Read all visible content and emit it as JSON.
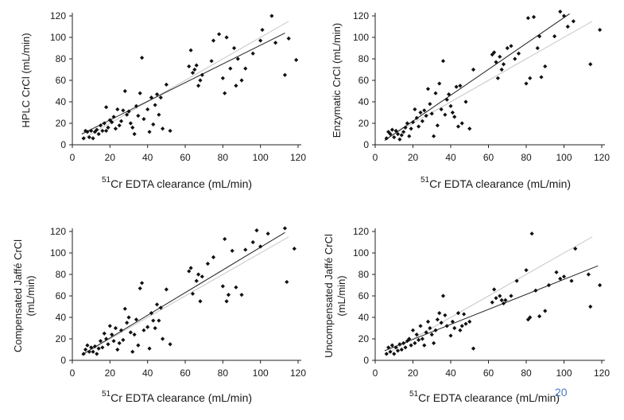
{
  "figure": {
    "page_number": "20",
    "colors": {
      "points": "#111111",
      "axis": "#222222",
      "regression": "#222222",
      "identity": "#c4c4c4",
      "page_number": "#4a78c2"
    }
  },
  "chart_data": [
    {
      "type": "scatter",
      "title": "",
      "ylabel": "HPLC CrCl (mL/min)",
      "xlabel_superscript": "51",
      "xlabel": "Cr EDTA clearance (mL/min)",
      "xlim": [
        0,
        120
      ],
      "ylim": [
        0,
        120
      ],
      "xticks": [
        0,
        20,
        40,
        60,
        80,
        100,
        120
      ],
      "yticks": [
        0,
        20,
        40,
        60,
        80,
        100,
        120
      ],
      "regression_line": {
        "x": [
          5,
          113
        ],
        "y": [
          10,
          104
        ]
      },
      "identity_line": {
        "x": [
          5,
          115
        ],
        "y": [
          5,
          115
        ]
      },
      "points": [
        [
          6,
          6
        ],
        [
          7,
          13
        ],
        [
          8,
          12
        ],
        [
          9,
          7
        ],
        [
          10,
          13
        ],
        [
          11,
          6
        ],
        [
          12,
          12
        ],
        [
          13,
          14
        ],
        [
          14,
          10
        ],
        [
          15,
          18
        ],
        [
          16,
          13
        ],
        [
          17,
          20
        ],
        [
          18,
          13
        ],
        [
          18,
          35
        ],
        [
          19,
          16
        ],
        [
          20,
          23
        ],
        [
          21,
          21
        ],
        [
          22,
          26
        ],
        [
          23,
          15
        ],
        [
          24,
          33
        ],
        [
          25,
          18
        ],
        [
          26,
          22
        ],
        [
          27,
          32
        ],
        [
          28,
          50
        ],
        [
          29,
          28
        ],
        [
          30,
          31
        ],
        [
          31,
          20
        ],
        [
          32,
          16
        ],
        [
          33,
          10
        ],
        [
          34,
          36
        ],
        [
          35,
          27
        ],
        [
          36,
          48
        ],
        [
          37,
          81
        ],
        [
          38,
          24
        ],
        [
          40,
          33
        ],
        [
          41,
          12
        ],
        [
          42,
          44
        ],
        [
          43,
          19
        ],
        [
          44,
          37
        ],
        [
          45,
          47
        ],
        [
          46,
          28
        ],
        [
          47,
          44
        ],
        [
          48,
          15
        ],
        [
          50,
          56
        ],
        [
          52,
          13
        ],
        [
          62,
          73
        ],
        [
          63,
          88
        ],
        [
          64,
          67
        ],
        [
          65,
          70
        ],
        [
          66,
          74
        ],
        [
          67,
          55
        ],
        [
          68,
          60
        ],
        [
          69,
          65
        ],
        [
          74,
          78
        ],
        [
          75,
          97
        ],
        [
          78,
          103
        ],
        [
          80,
          62
        ],
        [
          81,
          48
        ],
        [
          82,
          100
        ],
        [
          84,
          71
        ],
        [
          86,
          90
        ],
        [
          87,
          55
        ],
        [
          88,
          80
        ],
        [
          90,
          60
        ],
        [
          92,
          71
        ],
        [
          96,
          85
        ],
        [
          100,
          97
        ],
        [
          101,
          107
        ],
        [
          106,
          120
        ],
        [
          108,
          95
        ],
        [
          113,
          65
        ],
        [
          115,
          99
        ],
        [
          119,
          79
        ]
      ]
    },
    {
      "type": "scatter",
      "title": "",
      "ylabel": "Enzymatic CrCl (mL/min)",
      "xlabel_superscript": "51",
      "xlabel": "Cr EDTA clearance (mL/min)",
      "xlim": [
        0,
        120
      ],
      "ylim": [
        0,
        120
      ],
      "xticks": [
        0,
        20,
        40,
        60,
        80,
        100,
        120
      ],
      "yticks": [
        0,
        20,
        40,
        60,
        80,
        100,
        120
      ],
      "regression_line": {
        "x": [
          5,
          103
        ],
        "y": [
          4,
          122
        ]
      },
      "identity_line": {
        "x": [
          5,
          115
        ],
        "y": [
          5,
          115
        ]
      },
      "points": [
        [
          6,
          6
        ],
        [
          7,
          12
        ],
        [
          8,
          10
        ],
        [
          9,
          14
        ],
        [
          10,
          7
        ],
        [
          11,
          13
        ],
        [
          12,
          10
        ],
        [
          13,
          5
        ],
        [
          14,
          9
        ],
        [
          15,
          12
        ],
        [
          16,
          16
        ],
        [
          17,
          20
        ],
        [
          18,
          8
        ],
        [
          19,
          15
        ],
        [
          20,
          21
        ],
        [
          21,
          33
        ],
        [
          22,
          25
        ],
        [
          23,
          17
        ],
        [
          24,
          30
        ],
        [
          25,
          22
        ],
        [
          26,
          32
        ],
        [
          27,
          27
        ],
        [
          28,
          52
        ],
        [
          29,
          38
        ],
        [
          30,
          29
        ],
        [
          31,
          8
        ],
        [
          32,
          48
        ],
        [
          33,
          18
        ],
        [
          34,
          57
        ],
        [
          35,
          33
        ],
        [
          36,
          78
        ],
        [
          37,
          28
        ],
        [
          38,
          42
        ],
        [
          39,
          47
        ],
        [
          40,
          36
        ],
        [
          41,
          30
        ],
        [
          42,
          26
        ],
        [
          43,
          54
        ],
        [
          44,
          17
        ],
        [
          45,
          55
        ],
        [
          46,
          20
        ],
        [
          48,
          40
        ],
        [
          50,
          15
        ],
        [
          52,
          70
        ],
        [
          62,
          84
        ],
        [
          63,
          86
        ],
        [
          64,
          77
        ],
        [
          65,
          62
        ],
        [
          66,
          82
        ],
        [
          67,
          70
        ],
        [
          68,
          75
        ],
        [
          70,
          90
        ],
        [
          72,
          92
        ],
        [
          74,
          80
        ],
        [
          76,
          85
        ],
        [
          80,
          57
        ],
        [
          81,
          118
        ],
        [
          82,
          62
        ],
        [
          84,
          119
        ],
        [
          86,
          90
        ],
        [
          87,
          101
        ],
        [
          88,
          63
        ],
        [
          90,
          73
        ],
        [
          95,
          101
        ],
        [
          98,
          124
        ],
        [
          100,
          120
        ],
        [
          102,
          110
        ],
        [
          105,
          115
        ],
        [
          114,
          75
        ],
        [
          119,
          107
        ]
      ]
    },
    {
      "type": "scatter",
      "title": "",
      "ylabel": "Compensated Jaffé CrCl (mL/min)",
      "xlabel_superscript": "51",
      "xlabel": "Cr EDTA clearance (mL/min)",
      "xlim": [
        0,
        120
      ],
      "ylim": [
        0,
        120
      ],
      "xticks": [
        0,
        20,
        40,
        60,
        80,
        100,
        120
      ],
      "yticks": [
        0,
        20,
        40,
        60,
        80,
        100,
        120
      ],
      "regression_line": {
        "x": [
          5,
          113
        ],
        "y": [
          5,
          119
        ]
      },
      "identity_line": {
        "x": [
          5,
          115
        ],
        "y": [
          5,
          115
        ]
      },
      "points": [
        [
          6,
          6
        ],
        [
          7,
          10
        ],
        [
          8,
          14
        ],
        [
          9,
          8
        ],
        [
          10,
          12
        ],
        [
          11,
          8
        ],
        [
          12,
          13
        ],
        [
          13,
          6
        ],
        [
          14,
          11
        ],
        [
          15,
          18
        ],
        [
          16,
          12
        ],
        [
          17,
          25
        ],
        [
          18,
          20
        ],
        [
          19,
          15
        ],
        [
          20,
          32
        ],
        [
          21,
          24
        ],
        [
          22,
          18
        ],
        [
          23,
          30
        ],
        [
          24,
          10
        ],
        [
          25,
          16
        ],
        [
          26,
          28
        ],
        [
          27,
          19
        ],
        [
          28,
          48
        ],
        [
          29,
          35
        ],
        [
          30,
          40
        ],
        [
          31,
          26
        ],
        [
          32,
          8
        ],
        [
          33,
          24
        ],
        [
          34,
          38
        ],
        [
          35,
          14
        ],
        [
          36,
          67
        ],
        [
          37,
          72
        ],
        [
          38,
          28
        ],
        [
          40,
          31
        ],
        [
          41,
          11
        ],
        [
          42,
          44
        ],
        [
          43,
          37
        ],
        [
          44,
          30
        ],
        [
          45,
          52
        ],
        [
          46,
          37
        ],
        [
          47,
          49
        ],
        [
          48,
          20
        ],
        [
          50,
          66
        ],
        [
          52,
          15
        ],
        [
          62,
          83
        ],
        [
          63,
          86
        ],
        [
          64,
          62
        ],
        [
          66,
          74
        ],
        [
          67,
          80
        ],
        [
          68,
          55
        ],
        [
          69,
          78
        ],
        [
          72,
          90
        ],
        [
          75,
          96
        ],
        [
          80,
          69
        ],
        [
          81,
          113
        ],
        [
          82,
          55
        ],
        [
          83,
          61
        ],
        [
          85,
          102
        ],
        [
          87,
          68
        ],
        [
          90,
          61
        ],
        [
          92,
          103
        ],
        [
          96,
          110
        ],
        [
          98,
          121
        ],
        [
          100,
          106
        ],
        [
          104,
          118
        ],
        [
          113,
          123
        ],
        [
          114,
          73
        ],
        [
          118,
          104
        ]
      ]
    },
    {
      "type": "scatter",
      "title": "",
      "ylabel": "Uncompensated Jaffé CrCl (mL/min)",
      "xlabel_superscript": "51",
      "xlabel": "Cr EDTA clearance (mL/min)",
      "xlim": [
        0,
        120
      ],
      "ylim": [
        0,
        120
      ],
      "xticks": [
        0,
        20,
        40,
        60,
        80,
        100,
        120
      ],
      "yticks": [
        0,
        20,
        40,
        60,
        80,
        100,
        120
      ],
      "regression_line": {
        "x": [
          5,
          118
        ],
        "y": [
          9,
          88
        ]
      },
      "identity_line": {
        "x": [
          5,
          115
        ],
        "y": [
          5,
          115
        ]
      },
      "points": [
        [
          6,
          6
        ],
        [
          7,
          12
        ],
        [
          8,
          8
        ],
        [
          9,
          14
        ],
        [
          10,
          6
        ],
        [
          11,
          12
        ],
        [
          12,
          9
        ],
        [
          13,
          15
        ],
        [
          14,
          10
        ],
        [
          15,
          16
        ],
        [
          16,
          12
        ],
        [
          17,
          18
        ],
        [
          18,
          20
        ],
        [
          19,
          14
        ],
        [
          20,
          28
        ],
        [
          21,
          16
        ],
        [
          22,
          24
        ],
        [
          23,
          19
        ],
        [
          24,
          32
        ],
        [
          25,
          20
        ],
        [
          26,
          14
        ],
        [
          27,
          26
        ],
        [
          28,
          36
        ],
        [
          29,
          30
        ],
        [
          30,
          24
        ],
        [
          31,
          16
        ],
        [
          32,
          28
        ],
        [
          33,
          38
        ],
        [
          34,
          44
        ],
        [
          35,
          35
        ],
        [
          36,
          60
        ],
        [
          37,
          42
        ],
        [
          38,
          32
        ],
        [
          40,
          23
        ],
        [
          41,
          36
        ],
        [
          42,
          30
        ],
        [
          44,
          44
        ],
        [
          45,
          28
        ],
        [
          46,
          32
        ],
        [
          47,
          43
        ],
        [
          48,
          34
        ],
        [
          50,
          36
        ],
        [
          52,
          11
        ],
        [
          62,
          54
        ],
        [
          63,
          66
        ],
        [
          64,
          58
        ],
        [
          66,
          60
        ],
        [
          67,
          56
        ],
        [
          68,
          53
        ],
        [
          69,
          56
        ],
        [
          72,
          60
        ],
        [
          75,
          74
        ],
        [
          80,
          84
        ],
        [
          81,
          38
        ],
        [
          82,
          40
        ],
        [
          83,
          118
        ],
        [
          85,
          65
        ],
        [
          87,
          41
        ],
        [
          90,
          46
        ],
        [
          92,
          70
        ],
        [
          96,
          82
        ],
        [
          98,
          76
        ],
        [
          100,
          78
        ],
        [
          104,
          74
        ],
        [
          106,
          104
        ],
        [
          113,
          80
        ],
        [
          114,
          50
        ],
        [
          119,
          70
        ]
      ]
    }
  ]
}
